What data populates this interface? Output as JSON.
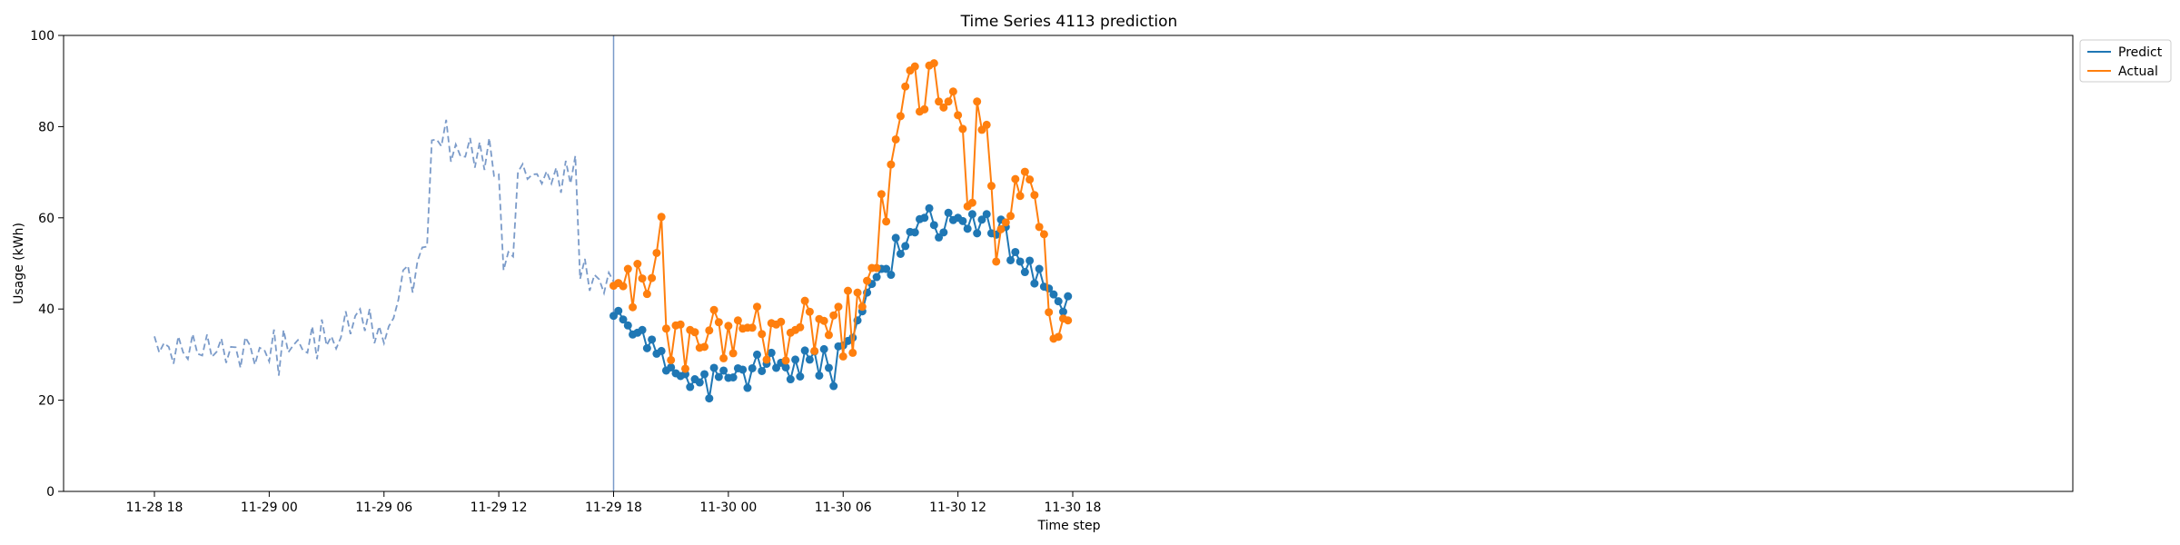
{
  "chart_data": {
    "type": "line",
    "title": "Time Series 4113 prediction",
    "xlabel": "Time step",
    "ylabel": "Usage (kWh)",
    "ylim": [
      0,
      100
    ],
    "yticks": [
      0,
      20,
      40,
      60,
      80,
      100
    ],
    "x_start": "2023-11-28T18:00",
    "step_minutes": 60,
    "xticks": [
      "11-28 18",
      "11-29 00",
      "11-29 06",
      "11-29 12",
      "11-29 18",
      "11-30 00",
      "11-30 06",
      "11-30 12",
      "11-30 18"
    ],
    "xtick_times": [
      "2023-11-28T18:00",
      "2023-11-29T00:00",
      "2023-11-29T06:00",
      "2023-11-29T12:00",
      "2023-11-29T18:00",
      "2023-11-30T00:00",
      "2023-11-30T06:00",
      "2023-11-30T12:00",
      "2023-11-30T18:00"
    ],
    "forecast_start": "2023-11-29T18:00",
    "grid": false,
    "legend_position": "upper-right-outside",
    "history": {
      "x_start": "2023-11-28T18:00",
      "step_minutes": 15,
      "color": "#7b9bc9",
      "style": "dashed",
      "values": [
        34,
        30.5,
        32.5,
        31.7,
        28,
        34,
        30.5,
        29,
        34.5,
        30.2,
        29.8,
        34.4,
        29.5,
        30.6,
        33.5,
        28.2,
        31.7,
        31.6,
        27.1,
        33.8,
        32,
        27.8,
        31.5,
        31,
        28.5,
        35.5,
        25.4,
        35.4,
        30.5,
        32,
        33.2,
        31,
        30.4,
        36.2,
        29,
        37.7,
        32,
        34,
        31.3,
        33.8,
        39.5,
        34.5,
        38.5,
        40,
        35.2,
        40,
        32.5,
        36.2,
        32.5,
        36.2,
        38,
        42,
        48.5,
        49.5,
        43.6,
        50.5,
        53.5,
        53.7,
        77,
        77.2,
        75.7,
        81.5,
        72.3,
        76.1,
        73.5,
        73.4,
        77.5,
        71,
        76.6,
        70.5,
        77.5,
        69.2,
        69.5,
        48.5,
        52.5,
        51.5,
        70,
        71.8,
        68.5,
        69.5,
        69.6,
        67.5,
        70.2,
        67.5,
        71,
        65.5,
        72.5,
        67.5,
        73.6,
        46.6,
        51,
        44,
        47.5,
        46.5,
        43.5,
        48,
        46
      ]
    },
    "series": [
      {
        "name": "Predict",
        "color": "#1f77b4",
        "x_start": "2023-11-29T18:00",
        "step_minutes": 15,
        "values": [
          38.5,
          39.6,
          37.7,
          36.4,
          34.4,
          34.8,
          35.4,
          31.4,
          33.3,
          30.2,
          30.8,
          26.5,
          27.2,
          25.9,
          25.3,
          25.7,
          22.9,
          24.6,
          23.9,
          25.7,
          20.4,
          27.1,
          25.1,
          26.5,
          24.9,
          25,
          27,
          26.7,
          22.7,
          27,
          30,
          26.4,
          28,
          30.4,
          27.1,
          28.2,
          27.2,
          24.6,
          28.9,
          25.2,
          30.9,
          28.9,
          30.7,
          25.4,
          31.2,
          27.1,
          23.1,
          31.8,
          32,
          33,
          33.7,
          37.5,
          39.5,
          43.6,
          45.5,
          47,
          48.8,
          48.8,
          47.5,
          55.6,
          52.1,
          53.8,
          56.9,
          56.8,
          59.7,
          60,
          62.1,
          58.4,
          55.7,
          56.8,
          61.1,
          59.5,
          60,
          59.3,
          57.6,
          60.8,
          56.6,
          59.6,
          60.8,
          56.6,
          56.3,
          59.6,
          58,
          50.7,
          52.5,
          50.4,
          48.1,
          50.6,
          45.6,
          48.8,
          44.9,
          44.5,
          43.2,
          41.7,
          39.4,
          42.8
        ]
      },
      {
        "name": "Actual",
        "color": "#ff7f0e",
        "x_start": "2023-11-29T18:00",
        "step_minutes": 15,
        "values": [
          45.1,
          45.7,
          45,
          48.8,
          40.4,
          49.9,
          46.7,
          43.3,
          46.8,
          52.3,
          60.2,
          35.7,
          28.8,
          36.4,
          36.6,
          26.9,
          35.4,
          34.9,
          31.5,
          31.7,
          35.3,
          39.8,
          37.1,
          29.2,
          36.3,
          30.3,
          37.5,
          35.7,
          35.9,
          35.9,
          40.5,
          34.5,
          28.9,
          36.9,
          36.6,
          37.2,
          28.7,
          34.8,
          35.4,
          36,
          41.8,
          39.4,
          30.8,
          37.8,
          37.4,
          34.3,
          38.6,
          40.5,
          29.6,
          44,
          30.4,
          43.6,
          40.5,
          46.2,
          49,
          49,
          65.2,
          59.2,
          71.7,
          77.2,
          82.3,
          88.8,
          92.3,
          93.2,
          83.3,
          83.8,
          93.4,
          93.9,
          85.5,
          84.2,
          85.5,
          87.7,
          82.5,
          79.5,
          62.5,
          63.3,
          85.5,
          79.3,
          80.4,
          67,
          50.4,
          57.5,
          59,
          60.4,
          68.5,
          64.8,
          70.1,
          68.4,
          65,
          58,
          56.4,
          39.3,
          33.5,
          33.9,
          37.9,
          37.5
        ]
      }
    ]
  }
}
